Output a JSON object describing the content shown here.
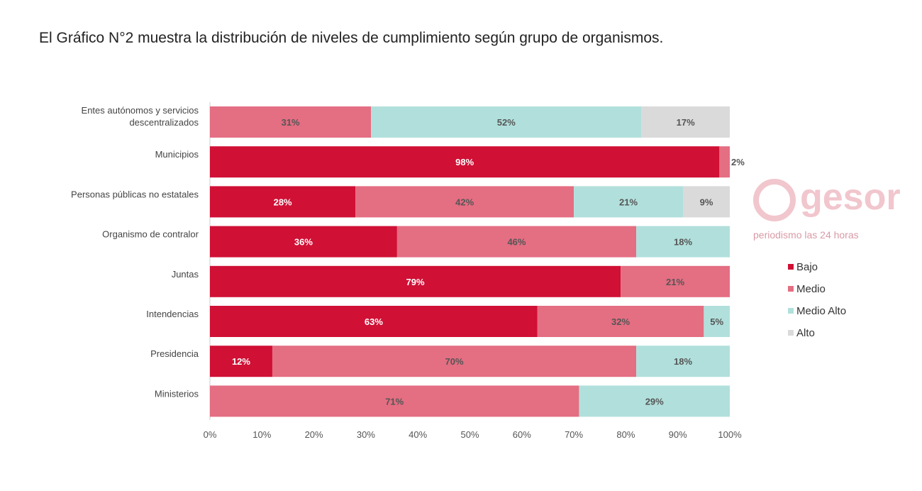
{
  "title": "El Gráfico N°2 muestra la distribución de niveles de cumplimiento según grupo de organismos.",
  "watermark": {
    "brand": "gesor",
    "tagline": "periodismo las 24 horas"
  },
  "colors": {
    "Bajo": "#d01035",
    "Medio": "#e46e82",
    "Medio Alto": "#b1e0dc",
    "Alto": "#dadada"
  },
  "chart_data": {
    "type": "bar",
    "orientation": "horizontal",
    "stacked": "percent",
    "title": "El Gráfico N°2 muestra la distribución de niveles de cumplimiento según grupo de organismos.",
    "categories": [
      [
        "Entes autónomos y servicios",
        "descentralizados"
      ],
      [
        "Municipios"
      ],
      [
        "Personas públicas no estatales"
      ],
      [
        "Organismo de contralor"
      ],
      [
        "Juntas"
      ],
      [
        "Intendencias"
      ],
      [
        "Presidencia"
      ],
      [
        "Ministerios"
      ]
    ],
    "series": [
      {
        "name": "Bajo",
        "values": [
          0,
          98,
          28,
          36,
          79,
          63,
          12,
          0
        ]
      },
      {
        "name": "Medio",
        "values": [
          31,
          2,
          42,
          46,
          21,
          32,
          70,
          71
        ]
      },
      {
        "name": "Medio Alto",
        "values": [
          52,
          0,
          21,
          18,
          0,
          5,
          18,
          29
        ]
      },
      {
        "name": "Alto",
        "values": [
          17,
          0,
          9,
          0,
          0,
          0,
          0,
          0
        ]
      }
    ],
    "xticks": [
      "0%",
      "10%",
      "20%",
      "30%",
      "40%",
      "50%",
      "60%",
      "70%",
      "80%",
      "90%",
      "100%"
    ],
    "xlim": [
      0,
      100
    ],
    "legend": "right",
    "grid": false
  }
}
